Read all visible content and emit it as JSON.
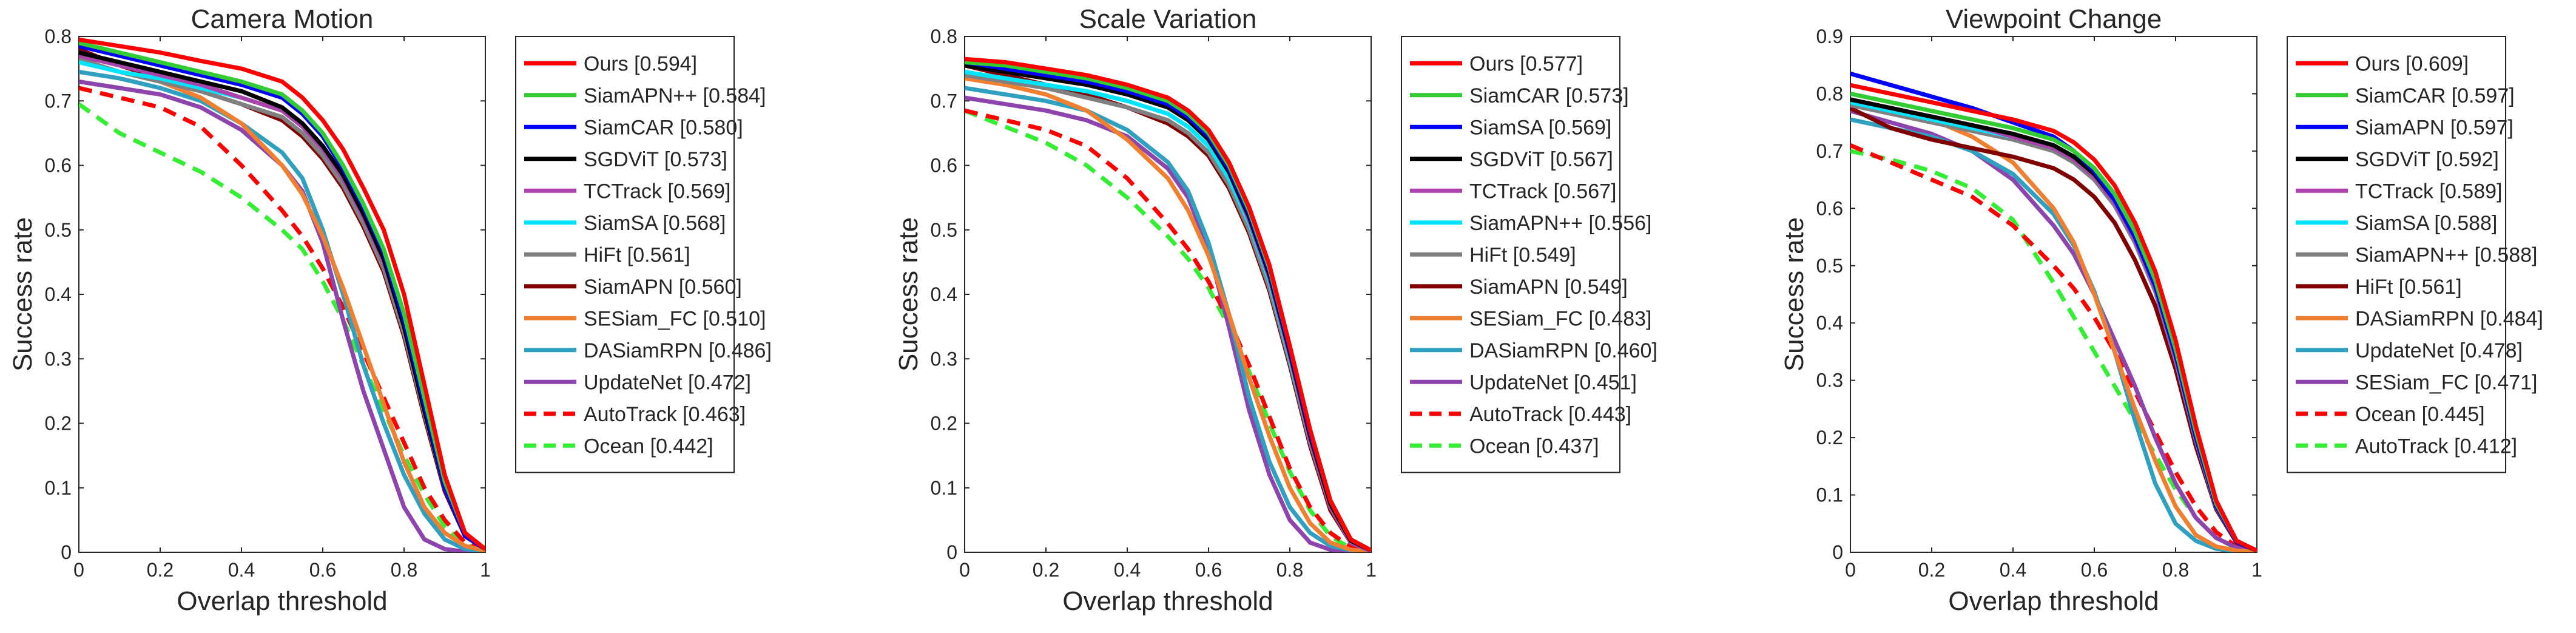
{
  "chart_data": [
    {
      "type": "line",
      "title": "Camera Motion",
      "xlabel": "Overlap threshold",
      "ylabel": "Success rate",
      "xlim": [
        0,
        1
      ],
      "ylim": [
        0,
        0.8
      ],
      "xticks": [
        "0",
        "0.2",
        "0.4",
        "0.6",
        "0.8",
        "1"
      ],
      "yticks": [
        "0",
        "0.1",
        "0.2",
        "0.3",
        "0.4",
        "0.5",
        "0.6",
        "0.7",
        "0.8"
      ],
      "legend_position": "outside-right",
      "x": [
        0,
        0.1,
        0.2,
        0.3,
        0.4,
        0.5,
        0.55,
        0.6,
        0.65,
        0.7,
        0.75,
        0.8,
        0.85,
        0.9,
        0.95,
        1
      ],
      "series": [
        {
          "name": "Ours [0.594]",
          "color": "#ff0000",
          "dash": "solid",
          "values": [
            0.795,
            0.785,
            0.775,
            0.762,
            0.75,
            0.73,
            0.705,
            0.67,
            0.625,
            0.565,
            0.5,
            0.4,
            0.26,
            0.12,
            0.03,
            0.005
          ]
        },
        {
          "name": "SiamAPN++ [0.584]",
          "color": "#33cc33",
          "dash": "solid",
          "values": [
            0.79,
            0.775,
            0.76,
            0.745,
            0.73,
            0.71,
            0.685,
            0.65,
            0.6,
            0.54,
            0.47,
            0.37,
            0.24,
            0.11,
            0.03,
            0.005
          ]
        },
        {
          "name": "SiamCAR [0.580]",
          "color": "#0000ff",
          "dash": "solid",
          "values": [
            0.785,
            0.77,
            0.755,
            0.74,
            0.725,
            0.705,
            0.68,
            0.645,
            0.595,
            0.535,
            0.465,
            0.36,
            0.23,
            0.1,
            0.025,
            0.005
          ]
        },
        {
          "name": "SGDViT [0.573]",
          "color": "#000000",
          "dash": "solid",
          "values": [
            0.775,
            0.76,
            0.745,
            0.73,
            0.715,
            0.69,
            0.665,
            0.63,
            0.585,
            0.525,
            0.455,
            0.35,
            0.22,
            0.1,
            0.025,
            0.005
          ]
        },
        {
          "name": "TCTrack [0.569]",
          "color": "#aa44aa",
          "dash": "solid",
          "values": [
            0.77,
            0.755,
            0.74,
            0.725,
            0.705,
            0.685,
            0.66,
            0.625,
            0.58,
            0.52,
            0.45,
            0.35,
            0.22,
            0.1,
            0.025,
            0.005
          ]
        },
        {
          "name": "SiamSA [0.568]",
          "color": "#00e5ff",
          "dash": "solid",
          "values": [
            0.76,
            0.745,
            0.735,
            0.72,
            0.705,
            0.685,
            0.66,
            0.625,
            0.58,
            0.52,
            0.45,
            0.35,
            0.22,
            0.1,
            0.025,
            0.005
          ]
        },
        {
          "name": "HiFt [0.561]",
          "color": "#808080",
          "dash": "solid",
          "values": [
            0.765,
            0.745,
            0.73,
            0.715,
            0.695,
            0.675,
            0.65,
            0.615,
            0.57,
            0.51,
            0.44,
            0.34,
            0.215,
            0.1,
            0.025,
            0.005
          ]
        },
        {
          "name": "SiamAPN [0.560]",
          "color": "#800000",
          "dash": "solid",
          "values": [
            0.78,
            0.755,
            0.735,
            0.715,
            0.695,
            0.67,
            0.645,
            0.61,
            0.565,
            0.505,
            0.435,
            0.335,
            0.21,
            0.095,
            0.025,
            0.005
          ]
        },
        {
          "name": "SESiam_FC [0.510]",
          "color": "#f08030",
          "dash": "solid",
          "values": [
            0.765,
            0.745,
            0.73,
            0.705,
            0.665,
            0.6,
            0.555,
            0.49,
            0.41,
            0.32,
            0.23,
            0.14,
            0.07,
            0.03,
            0.01,
            0.002
          ]
        },
        {
          "name": "DASiamRPN [0.486]",
          "color": "#30a0c0",
          "dash": "solid",
          "values": [
            0.745,
            0.735,
            0.72,
            0.7,
            0.665,
            0.62,
            0.58,
            0.5,
            0.4,
            0.29,
            0.2,
            0.12,
            0.06,
            0.02,
            0.005,
            0.001
          ]
        },
        {
          "name": "UpdateNet [0.472]",
          "color": "#8e44ad",
          "dash": "solid",
          "values": [
            0.73,
            0.72,
            0.71,
            0.69,
            0.655,
            0.6,
            0.56,
            0.48,
            0.36,
            0.25,
            0.16,
            0.07,
            0.02,
            0.005,
            0.001,
            0
          ]
        },
        {
          "name": "AutoTrack [0.463]",
          "color": "#ff0000",
          "dash": "dashed",
          "values": [
            0.72,
            0.705,
            0.69,
            0.66,
            0.6,
            0.53,
            0.49,
            0.44,
            0.38,
            0.31,
            0.24,
            0.17,
            0.1,
            0.05,
            0.015,
            0.003
          ]
        },
        {
          "name": "Ocean [0.442]",
          "color": "#33ee33",
          "dash": "dashed",
          "values": [
            0.695,
            0.65,
            0.62,
            0.59,
            0.55,
            0.5,
            0.47,
            0.42,
            0.36,
            0.29,
            0.22,
            0.15,
            0.09,
            0.04,
            0.012,
            0.002
          ]
        }
      ]
    },
    {
      "type": "line",
      "title": "Scale Variation",
      "xlabel": "Overlap threshold",
      "ylabel": "Success rate",
      "xlim": [
        0,
        1
      ],
      "ylim": [
        0,
        0.8
      ],
      "xticks": [
        "0",
        "0.2",
        "0.4",
        "0.6",
        "0.8",
        "1"
      ],
      "yticks": [
        "0",
        "0.1",
        "0.2",
        "0.3",
        "0.4",
        "0.5",
        "0.6",
        "0.7",
        "0.8"
      ],
      "legend_position": "outside-right",
      "x": [
        0,
        0.1,
        0.2,
        0.3,
        0.4,
        0.5,
        0.55,
        0.6,
        0.65,
        0.7,
        0.75,
        0.8,
        0.85,
        0.9,
        0.95,
        1
      ],
      "series": [
        {
          "name": "Ours [0.577]",
          "color": "#ff0000",
          "dash": "solid",
          "values": [
            0.765,
            0.76,
            0.75,
            0.74,
            0.725,
            0.705,
            0.685,
            0.655,
            0.605,
            0.535,
            0.445,
            0.32,
            0.19,
            0.08,
            0.02,
            0.003
          ]
        },
        {
          "name": "SiamCAR [0.573]",
          "color": "#33cc33",
          "dash": "solid",
          "values": [
            0.76,
            0.755,
            0.745,
            0.735,
            0.72,
            0.7,
            0.68,
            0.65,
            0.6,
            0.53,
            0.44,
            0.32,
            0.19,
            0.08,
            0.02,
            0.003
          ]
        },
        {
          "name": "SiamSA [0.569]",
          "color": "#0000ff",
          "dash": "solid",
          "values": [
            0.76,
            0.75,
            0.74,
            0.73,
            0.715,
            0.695,
            0.675,
            0.645,
            0.595,
            0.525,
            0.435,
            0.315,
            0.185,
            0.08,
            0.02,
            0.003
          ]
        },
        {
          "name": "SGDViT [0.567]",
          "color": "#000000",
          "dash": "solid",
          "values": [
            0.755,
            0.745,
            0.735,
            0.725,
            0.71,
            0.69,
            0.67,
            0.64,
            0.59,
            0.52,
            0.43,
            0.31,
            0.18,
            0.075,
            0.018,
            0.003
          ]
        },
        {
          "name": "TCTrack [0.567]",
          "color": "#aa44aa",
          "dash": "solid",
          "values": [
            0.765,
            0.755,
            0.745,
            0.73,
            0.71,
            0.69,
            0.67,
            0.64,
            0.59,
            0.515,
            0.425,
            0.305,
            0.175,
            0.07,
            0.015,
            0.002
          ]
        },
        {
          "name": "SiamAPN++ [0.556]",
          "color": "#00e5ff",
          "dash": "solid",
          "values": [
            0.745,
            0.735,
            0.725,
            0.715,
            0.7,
            0.68,
            0.66,
            0.63,
            0.58,
            0.51,
            0.42,
            0.3,
            0.175,
            0.07,
            0.015,
            0.002
          ]
        },
        {
          "name": "HiFt [0.549]",
          "color": "#808080",
          "dash": "solid",
          "values": [
            0.74,
            0.73,
            0.72,
            0.705,
            0.69,
            0.67,
            0.65,
            0.62,
            0.57,
            0.5,
            0.41,
            0.295,
            0.17,
            0.07,
            0.015,
            0.002
          ]
        },
        {
          "name": "SiamAPN [0.549]",
          "color": "#800000",
          "dash": "solid",
          "values": [
            0.755,
            0.74,
            0.725,
            0.71,
            0.69,
            0.665,
            0.645,
            0.615,
            0.565,
            0.495,
            0.405,
            0.29,
            0.165,
            0.065,
            0.015,
            0.002
          ]
        },
        {
          "name": "SESiam_FC [0.483]",
          "color": "#f08030",
          "dash": "solid",
          "values": [
            0.735,
            0.725,
            0.71,
            0.685,
            0.64,
            0.58,
            0.53,
            0.46,
            0.37,
            0.27,
            0.18,
            0.1,
            0.045,
            0.015,
            0.004,
            0.001
          ]
        },
        {
          "name": "DASiamRPN [0.460]",
          "color": "#30a0c0",
          "dash": "solid",
          "values": [
            0.72,
            0.71,
            0.7,
            0.685,
            0.655,
            0.605,
            0.56,
            0.48,
            0.37,
            0.24,
            0.14,
            0.07,
            0.03,
            0.01,
            0.003,
            0
          ]
        },
        {
          "name": "UpdateNet [0.451]",
          "color": "#8e44ad",
          "dash": "solid",
          "values": [
            0.705,
            0.695,
            0.685,
            0.67,
            0.645,
            0.595,
            0.55,
            0.47,
            0.35,
            0.22,
            0.12,
            0.05,
            0.015,
            0.004,
            0.001,
            0
          ]
        },
        {
          "name": "AutoTrack [0.443]",
          "color": "#ff0000",
          "dash": "dashed",
          "values": [
            0.685,
            0.67,
            0.655,
            0.63,
            0.58,
            0.51,
            0.47,
            0.42,
            0.36,
            0.29,
            0.21,
            0.13,
            0.07,
            0.03,
            0.008,
            0.001
          ]
        },
        {
          "name": "Ocean [0.437]",
          "color": "#33ee33",
          "dash": "dashed",
          "values": [
            0.685,
            0.66,
            0.635,
            0.6,
            0.55,
            0.49,
            0.455,
            0.41,
            0.35,
            0.28,
            0.2,
            0.125,
            0.065,
            0.025,
            0.006,
            0.001
          ]
        }
      ]
    },
    {
      "type": "line",
      "title": "Viewpoint Change",
      "xlabel": "Overlap threshold",
      "ylabel": "Success rate",
      "xlim": [
        0,
        1
      ],
      "ylim": [
        0,
        0.9
      ],
      "xticks": [
        "0",
        "0.2",
        "0.4",
        "0.6",
        "0.8",
        "1"
      ],
      "yticks": [
        "0",
        "0.1",
        "0.2",
        "0.3",
        "0.4",
        "0.5",
        "0.6",
        "0.7",
        "0.8",
        "0.9"
      ],
      "legend_position": "outside-right",
      "x": [
        0,
        0.1,
        0.2,
        0.3,
        0.4,
        0.5,
        0.55,
        0.6,
        0.65,
        0.7,
        0.75,
        0.8,
        0.85,
        0.9,
        0.95,
        1
      ],
      "series": [
        {
          "name": "Ours [0.609]",
          "color": "#ff0000",
          "dash": "solid",
          "values": [
            0.815,
            0.8,
            0.785,
            0.77,
            0.755,
            0.735,
            0.715,
            0.685,
            0.64,
            0.575,
            0.49,
            0.37,
            0.22,
            0.09,
            0.02,
            0.003
          ]
        },
        {
          "name": "SiamCAR [0.597]",
          "color": "#33cc33",
          "dash": "solid",
          "values": [
            0.8,
            0.785,
            0.77,
            0.755,
            0.74,
            0.72,
            0.7,
            0.67,
            0.625,
            0.56,
            0.475,
            0.355,
            0.21,
            0.085,
            0.02,
            0.003
          ]
        },
        {
          "name": "SiamAPN [0.597]",
          "color": "#0000ff",
          "dash": "solid",
          "values": [
            0.835,
            0.815,
            0.795,
            0.775,
            0.75,
            0.725,
            0.7,
            0.665,
            0.615,
            0.55,
            0.465,
            0.345,
            0.2,
            0.08,
            0.018,
            0.003
          ]
        },
        {
          "name": "SGDViT [0.592]",
          "color": "#000000",
          "dash": "solid",
          "values": [
            0.79,
            0.775,
            0.76,
            0.745,
            0.73,
            0.71,
            0.69,
            0.66,
            0.615,
            0.55,
            0.465,
            0.345,
            0.205,
            0.08,
            0.018,
            0.003
          ]
        },
        {
          "name": "TCTrack [0.589]",
          "color": "#aa44aa",
          "dash": "solid",
          "values": [
            0.79,
            0.775,
            0.76,
            0.745,
            0.725,
            0.705,
            0.685,
            0.655,
            0.61,
            0.545,
            0.46,
            0.34,
            0.2,
            0.08,
            0.018,
            0.003
          ]
        },
        {
          "name": "SiamSA [0.588]",
          "color": "#00e5ff",
          "dash": "solid",
          "values": [
            0.785,
            0.77,
            0.755,
            0.74,
            0.725,
            0.705,
            0.685,
            0.655,
            0.61,
            0.545,
            0.46,
            0.34,
            0.2,
            0.08,
            0.018,
            0.003
          ]
        },
        {
          "name": "SiamAPN++ [0.588]",
          "color": "#808080",
          "dash": "solid",
          "values": [
            0.78,
            0.765,
            0.75,
            0.735,
            0.72,
            0.7,
            0.68,
            0.65,
            0.605,
            0.54,
            0.455,
            0.335,
            0.195,
            0.078,
            0.018,
            0.003
          ]
        },
        {
          "name": "HiFt [0.561]",
          "color": "#800000",
          "dash": "solid",
          "values": [
            0.775,
            0.74,
            0.72,
            0.705,
            0.69,
            0.67,
            0.65,
            0.62,
            0.575,
            0.51,
            0.43,
            0.32,
            0.185,
            0.075,
            0.017,
            0.003
          ]
        },
        {
          "name": "DASiamRPN [0.484]",
          "color": "#f08030",
          "dash": "solid",
          "values": [
            0.79,
            0.775,
            0.755,
            0.725,
            0.68,
            0.6,
            0.54,
            0.45,
            0.35,
            0.25,
            0.16,
            0.08,
            0.03,
            0.01,
            0.003,
            0.001
          ]
        },
        {
          "name": "UpdateNet [0.478]",
          "color": "#30a0c0",
          "dash": "solid",
          "values": [
            0.755,
            0.74,
            0.725,
            0.7,
            0.66,
            0.59,
            0.535,
            0.455,
            0.35,
            0.23,
            0.12,
            0.05,
            0.02,
            0.006,
            0.002,
            0
          ]
        },
        {
          "name": "SESiam_FC [0.471]",
          "color": "#8e44ad",
          "dash": "solid",
          "values": [
            0.77,
            0.75,
            0.73,
            0.7,
            0.65,
            0.57,
            0.52,
            0.45,
            0.37,
            0.29,
            0.2,
            0.12,
            0.06,
            0.025,
            0.008,
            0.002
          ]
        },
        {
          "name": "Ocean [0.445]",
          "color": "#ff0000",
          "dash": "dashed",
          "values": [
            0.71,
            0.68,
            0.65,
            0.62,
            0.57,
            0.5,
            0.46,
            0.41,
            0.35,
            0.28,
            0.21,
            0.14,
            0.08,
            0.035,
            0.01,
            0.002
          ]
        },
        {
          "name": "AutoTrack [0.412]",
          "color": "#33ee33",
          "dash": "dashed",
          "values": [
            0.7,
            0.685,
            0.665,
            0.635,
            0.58,
            0.47,
            0.41,
            0.35,
            0.29,
            0.23,
            0.17,
            0.11,
            0.06,
            0.025,
            0.007,
            0.001
          ]
        }
      ]
    }
  ]
}
